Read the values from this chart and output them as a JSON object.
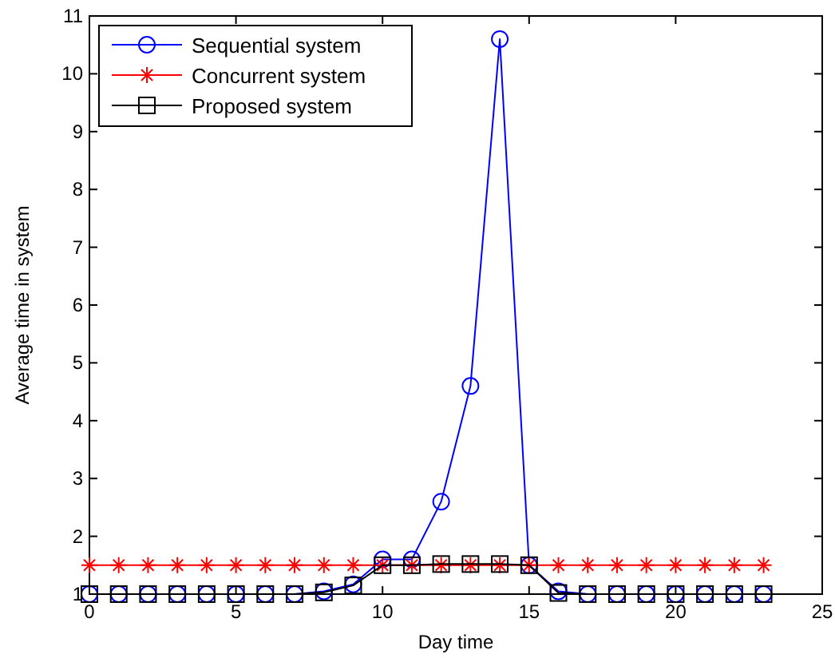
{
  "chart_data": {
    "type": "line",
    "xlabel": "Day time",
    "ylabel": "Average time in system",
    "x": [
      0,
      1,
      2,
      3,
      4,
      5,
      6,
      7,
      8,
      9,
      10,
      11,
      12,
      13,
      14,
      15,
      16,
      17,
      18,
      19,
      20,
      21,
      22,
      23
    ],
    "series": [
      {
        "name": "Sequential system",
        "color": "#0000ff",
        "marker": "circle",
        "values": [
          1,
          1,
          1,
          1,
          1,
          1,
          1,
          1,
          1.05,
          1.17,
          1.6,
          1.6,
          2.6,
          4.6,
          10.6,
          1.5,
          1.05,
          1,
          1,
          1,
          1,
          1,
          1,
          1
        ]
      },
      {
        "name": "Concurrent system",
        "color": "#ff0000",
        "marker": "cross",
        "values": [
          1.5,
          1.5,
          1.5,
          1.5,
          1.5,
          1.5,
          1.5,
          1.5,
          1.5,
          1.5,
          1.5,
          1.5,
          1.5,
          1.5,
          1.5,
          1.5,
          1.5,
          1.5,
          1.5,
          1.5,
          1.5,
          1.5,
          1.5,
          1.5
        ]
      },
      {
        "name": "Proposed system",
        "color": "#000000",
        "marker": "square",
        "values": [
          1,
          1,
          1,
          1,
          1,
          1,
          1,
          1,
          1.03,
          1.15,
          1.5,
          1.5,
          1.52,
          1.52,
          1.52,
          1.5,
          1.02,
          1,
          1,
          1,
          1,
          1,
          1,
          1
        ]
      }
    ],
    "xlim": [
      0,
      25
    ],
    "xticks": [
      0,
      5,
      10,
      15,
      20,
      25
    ],
    "ylim": [
      1,
      11
    ],
    "yticks": [
      1,
      2,
      3,
      4,
      5,
      6,
      7,
      8,
      9,
      10,
      11
    ],
    "legend": "top left",
    "grid": false
  }
}
